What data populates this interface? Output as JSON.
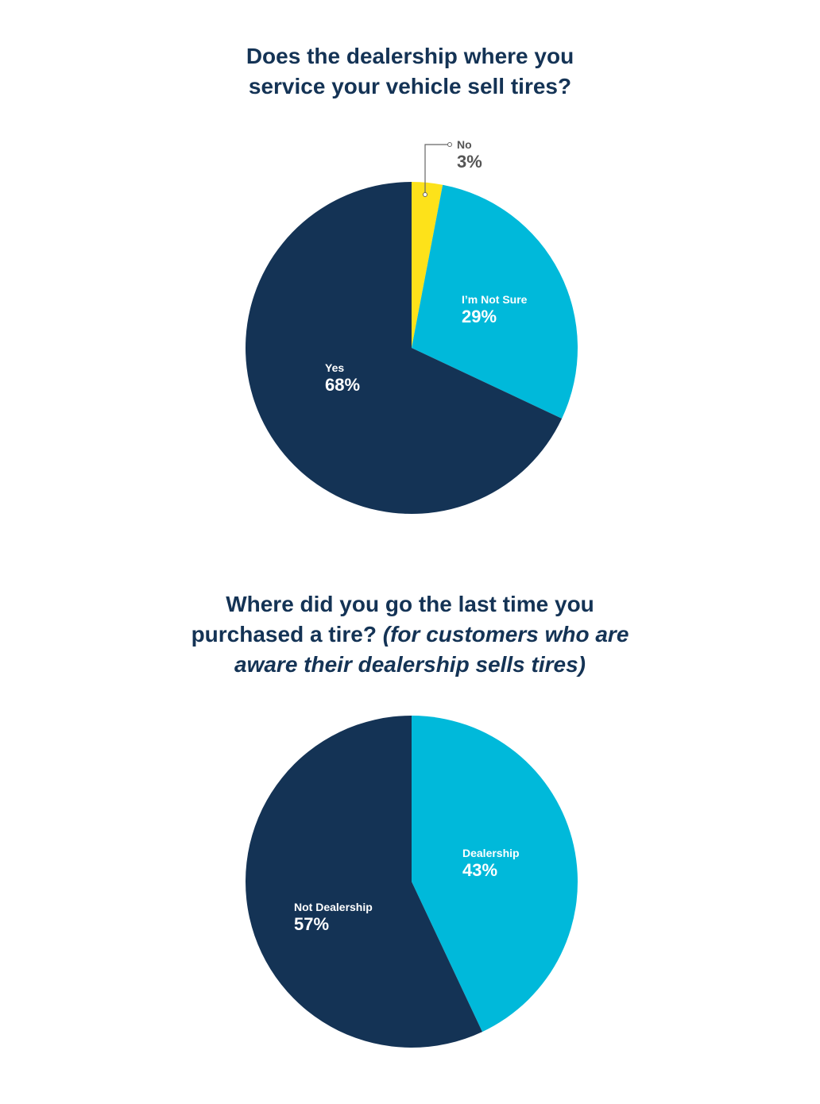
{
  "chart_data": [
    {
      "type": "pie",
      "title": "Does the dealership where you service your vehicle sell tires?",
      "categories": [
        "No",
        "I'm Not Sure",
        "Yes"
      ],
      "values": [
        3,
        29,
        68
      ],
      "unit": "%",
      "colors": [
        "#FDE21A",
        "#00B9DA",
        "#143355"
      ],
      "start_angle": "12 o'clock, clockwise",
      "annotations": [
        {
          "label": "No",
          "value": "3%",
          "callout": true
        }
      ]
    },
    {
      "type": "pie",
      "title": "Where did you go the last time you purchased a tire? (for customers who are aware their dealership sells tires)",
      "categories": [
        "Dealership",
        "Not Dealership"
      ],
      "values": [
        43,
        57
      ],
      "unit": "%",
      "colors": [
        "#00B9DA",
        "#143355"
      ],
      "start_angle": "12 o'clock, clockwise"
    }
  ],
  "chart1": {
    "title_line1": "Does the dealership where you",
    "title_line2": "service your vehicle sell tires?",
    "slices": [
      {
        "label": "No",
        "value_text": "3%"
      },
      {
        "label": "I’m Not Sure",
        "value_text": "29%"
      },
      {
        "label": "Yes",
        "value_text": "68%"
      }
    ]
  },
  "chart2": {
    "title_line1": "Where did you go the last time you",
    "title_line2_regular": "purchased a tire? ",
    "title_line2_italic": "(for customers who are",
    "title_line3_italic": "aware their dealership sells tires)",
    "slices": [
      {
        "label": "Dealership",
        "value_text": "43%"
      },
      {
        "label": "Not Dealership",
        "value_text": "57%"
      }
    ]
  }
}
